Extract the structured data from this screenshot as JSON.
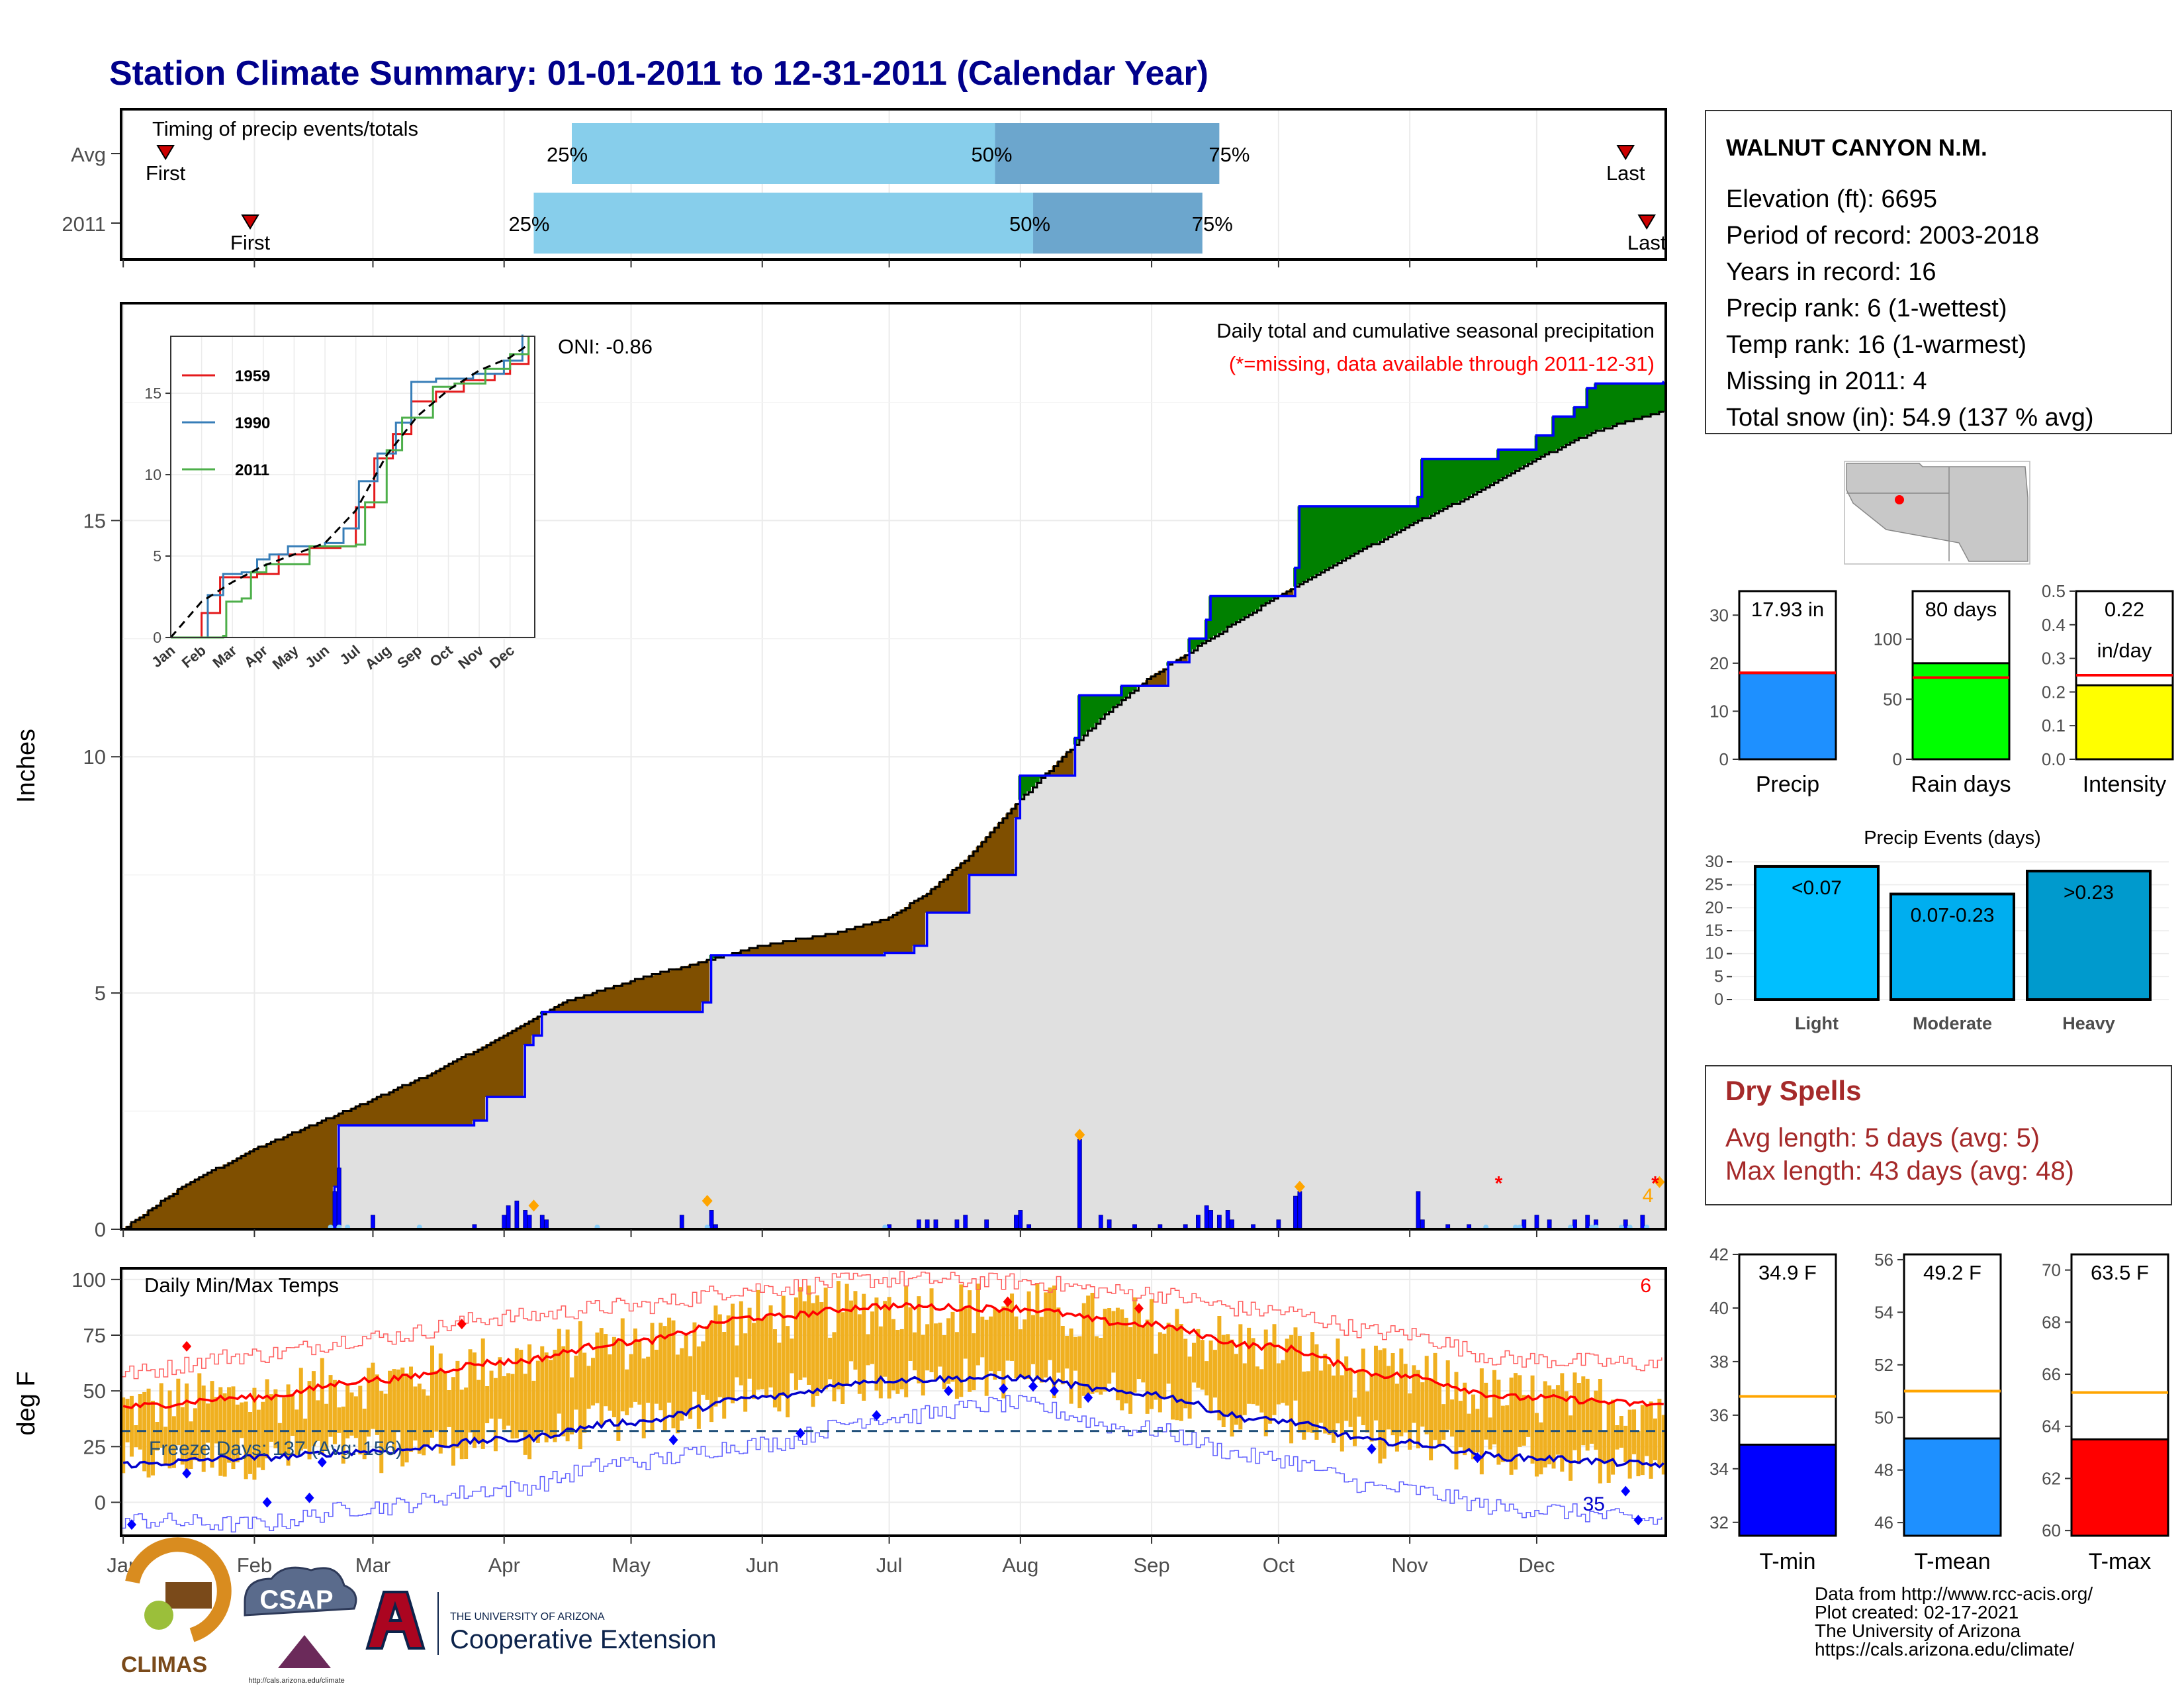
{
  "title": "Station Climate Summary: 01-01-2011 to 12-31-2011 (Calendar Year)",
  "colors": {
    "title": "#00008B",
    "q_light": "#87CEEB",
    "q_dark": "#6CA6CD",
    "marker": "#CC0000",
    "deficit": "#7F4F00",
    "surplus": "#008000",
    "cum2011": "#0000FF",
    "cumAvg": "#000000",
    "normal_fill": "#E0E0E0",
    "temp_bar": "#F0B020",
    "tmax_avg": "#FF0000",
    "tmin_avg": "#0000CC",
    "freeze_line": "#1F4E79",
    "dry_text": "#A52A2A"
  },
  "timing": {
    "label": "Timing of precip events/totals",
    "rows": [
      {
        "label": "Avg",
        "first": "01-11",
        "q25": "04-17",
        "q50": "07-26",
        "q75": "09-17",
        "last": "12-22",
        "q25_lbl": "25%",
        "q50_lbl": "50%",
        "q75_lbl": "75%",
        "first_lbl": "First",
        "last_lbl": "Last"
      },
      {
        "label": "2011",
        "first": "01-31",
        "q25": "04-08",
        "q50": "08-04",
        "q75": "09-13",
        "last": "12-27",
        "q25_lbl": "25%",
        "q50_lbl": "50%",
        "q75_lbl": "75%",
        "first_lbl": "First",
        "last_lbl": "Last"
      }
    ]
  },
  "main": {
    "ylabel": "Inches",
    "yticks": [
      0,
      5,
      10,
      15
    ],
    "ylim": [
      0,
      19.6
    ],
    "annot_title": "Daily total and cumulative seasonal precipitation",
    "annot_missing": "(*=missing, data available through 2011-12-31)",
    "oni": "ONI: -0.86",
    "missing_count": "4",
    "avg_cumulative": [
      {
        "m": "01-01",
        "v": 0.0
      },
      {
        "m": "01-15",
        "v": 0.9
      },
      {
        "m": "02-01",
        "v": 1.7
      },
      {
        "m": "02-20",
        "v": 2.4
      },
      {
        "m": "03-15",
        "v": 3.3
      },
      {
        "m": "04-01",
        "v": 4.1
      },
      {
        "m": "04-15",
        "v": 4.8
      },
      {
        "m": "05-01",
        "v": 5.25
      },
      {
        "m": "05-15",
        "v": 5.6
      },
      {
        "m": "06-01",
        "v": 6.0
      },
      {
        "m": "06-20",
        "v": 6.3
      },
      {
        "m": "07-01",
        "v": 6.6
      },
      {
        "m": "07-10",
        "v": 7.1
      },
      {
        "m": "07-20",
        "v": 7.9
      },
      {
        "m": "07-31",
        "v": 9.0
      },
      {
        "m": "08-10",
        "v": 9.9
      },
      {
        "m": "08-20",
        "v": 10.8
      },
      {
        "m": "09-01",
        "v": 11.7
      },
      {
        "m": "09-15",
        "v": 12.5
      },
      {
        "m": "10-01",
        "v": 13.4
      },
      {
        "m": "10-15",
        "v": 14.1
      },
      {
        "m": "11-01",
        "v": 14.9
      },
      {
        "m": "11-15",
        "v": 15.5
      },
      {
        "m": "12-01",
        "v": 16.3
      },
      {
        "m": "12-15",
        "v": 16.9
      },
      {
        "m": "12-31",
        "v": 17.3
      }
    ],
    "cum_2011": [
      {
        "m": "01-01",
        "v": 0.0
      },
      {
        "m": "02-19",
        "v": 0.0
      },
      {
        "m": "02-20",
        "v": 0.9
      },
      {
        "m": "02-21",
        "v": 2.2
      },
      {
        "m": "03-25",
        "v": 2.3
      },
      {
        "m": "03-28",
        "v": 2.8
      },
      {
        "m": "04-06",
        "v": 3.9
      },
      {
        "m": "04-08",
        "v": 4.1
      },
      {
        "m": "04-10",
        "v": 4.6
      },
      {
        "m": "05-18",
        "v": 4.8
      },
      {
        "m": "05-20",
        "v": 5.8
      },
      {
        "m": "06-30",
        "v": 5.85
      },
      {
        "m": "07-07",
        "v": 6.0
      },
      {
        "m": "07-10",
        "v": 6.7
      },
      {
        "m": "07-20",
        "v": 7.5
      },
      {
        "m": "07-31",
        "v": 8.7
      },
      {
        "m": "08-01",
        "v": 9.6
      },
      {
        "m": "08-14",
        "v": 10.4
      },
      {
        "m": "08-15",
        "v": 11.3
      },
      {
        "m": "08-25",
        "v": 11.5
      },
      {
        "m": "09-05",
        "v": 12.0
      },
      {
        "m": "09-10",
        "v": 12.5
      },
      {
        "m": "09-14",
        "v": 12.9
      },
      {
        "m": "09-15",
        "v": 13.4
      },
      {
        "m": "10-05",
        "v": 14.0
      },
      {
        "m": "10-06",
        "v": 15.3
      },
      {
        "m": "11-03",
        "v": 15.5
      },
      {
        "m": "11-04",
        "v": 16.3
      },
      {
        "m": "11-22",
        "v": 16.5
      },
      {
        "m": "12-01",
        "v": 16.8
      },
      {
        "m": "12-05",
        "v": 17.2
      },
      {
        "m": "12-10",
        "v": 17.4
      },
      {
        "m": "12-13",
        "v": 17.8
      },
      {
        "m": "12-15",
        "v": 17.9
      },
      {
        "m": "12-31",
        "v": 17.93
      }
    ],
    "daily_bars": [
      {
        "m": "02-20",
        "v": 0.8
      },
      {
        "m": "02-21",
        "v": 1.3
      },
      {
        "m": "03-01",
        "v": 0.3
      },
      {
        "m": "03-25",
        "v": 0.1
      },
      {
        "m": "04-01",
        "v": 0.3
      },
      {
        "m": "04-02",
        "v": 0.5
      },
      {
        "m": "04-04",
        "v": 0.6
      },
      {
        "m": "04-06",
        "v": 0.4
      },
      {
        "m": "04-07",
        "v": 0.3
      },
      {
        "m": "04-10",
        "v": 0.3
      },
      {
        "m": "04-11",
        "v": 0.2
      },
      {
        "m": "05-13",
        "v": 0.3
      },
      {
        "m": "05-20",
        "v": 0.4
      },
      {
        "m": "05-21",
        "v": 0.1
      },
      {
        "m": "07-01",
        "v": 0.1
      },
      {
        "m": "07-08",
        "v": 0.2
      },
      {
        "m": "07-10",
        "v": 0.2
      },
      {
        "m": "07-12",
        "v": 0.2
      },
      {
        "m": "07-17",
        "v": 0.2
      },
      {
        "m": "07-19",
        "v": 0.3
      },
      {
        "m": "07-24",
        "v": 0.2
      },
      {
        "m": "07-31",
        "v": 0.3
      },
      {
        "m": "08-01",
        "v": 0.4
      },
      {
        "m": "08-03",
        "v": 0.1
      },
      {
        "m": "08-15",
        "v": 1.9
      },
      {
        "m": "08-20",
        "v": 0.3
      },
      {
        "m": "08-22",
        "v": 0.2
      },
      {
        "m": "08-28",
        "v": 0.1
      },
      {
        "m": "09-03",
        "v": 0.1
      },
      {
        "m": "09-09",
        "v": 0.1
      },
      {
        "m": "09-12",
        "v": 0.3
      },
      {
        "m": "09-14",
        "v": 0.5
      },
      {
        "m": "09-15",
        "v": 0.4
      },
      {
        "m": "09-17",
        "v": 0.3
      },
      {
        "m": "09-19",
        "v": 0.4
      },
      {
        "m": "09-20",
        "v": 0.2
      },
      {
        "m": "09-25",
        "v": 0.1
      },
      {
        "m": "10-01",
        "v": 0.2
      },
      {
        "m": "10-05",
        "v": 0.7
      },
      {
        "m": "10-06",
        "v": 0.8
      },
      {
        "m": "11-03",
        "v": 0.8
      },
      {
        "m": "11-04",
        "v": 0.2
      },
      {
        "m": "11-10",
        "v": 0.1
      },
      {
        "m": "11-15",
        "v": 0.1
      },
      {
        "m": "11-28",
        "v": 0.2
      },
      {
        "m": "12-01",
        "v": 0.3
      },
      {
        "m": "12-04",
        "v": 0.2
      },
      {
        "m": "12-10",
        "v": 0.2
      },
      {
        "m": "12-13",
        "v": 0.3
      },
      {
        "m": "12-15",
        "v": 0.2
      },
      {
        "m": "12-22",
        "v": 0.2
      },
      {
        "m": "12-26",
        "v": 0.3
      }
    ],
    "record_diamonds": [
      {
        "m": "04-08",
        "v": 0.5
      },
      {
        "m": "05-19",
        "v": 0.6
      },
      {
        "m": "08-15",
        "v": 2.0
      },
      {
        "m": "10-06",
        "v": 0.9
      },
      {
        "m": "12-30",
        "v": 1.0
      }
    ],
    "missing_marks": [
      {
        "m": "11-22",
        "v": 1.0
      },
      {
        "m": "12-29",
        "v": 1.0
      }
    ]
  },
  "inset": {
    "yticks": [
      0,
      5,
      10,
      15
    ],
    "ylim": [
      0,
      18.5
    ],
    "xticks": [
      "Jan",
      "Feb",
      "Mar",
      "Apr",
      "May",
      "Jun",
      "Jul",
      "Aug",
      "Sep",
      "Oct",
      "Nov",
      "Dec"
    ],
    "avg_line": [
      [
        0,
        0
      ],
      [
        1,
        2.2
      ],
      [
        2,
        3.4
      ],
      [
        3,
        4.4
      ],
      [
        4,
        5.1
      ],
      [
        5,
        5.8
      ],
      [
        6,
        7.8
      ],
      [
        7,
        11.2
      ],
      [
        8,
        13.6
      ],
      [
        9,
        15.2
      ],
      [
        10,
        16.4
      ],
      [
        11,
        17.2
      ],
      [
        11.6,
        18.0
      ]
    ],
    "series": [
      {
        "name": "1959",
        "color": "#E41A1C",
        "values": [
          [
            0,
            0
          ],
          [
            1.0,
            1.5
          ],
          [
            1.6,
            3.7
          ],
          [
            2.2,
            3.7
          ],
          [
            2.8,
            3.9
          ],
          [
            3.5,
            5.1
          ],
          [
            4.5,
            5.5
          ],
          [
            5.5,
            5.6
          ],
          [
            6.0,
            8.0
          ],
          [
            6.6,
            11.0
          ],
          [
            7.2,
            12.5
          ],
          [
            7.8,
            14.5
          ],
          [
            8.6,
            15.1
          ],
          [
            9.5,
            15.8
          ],
          [
            10.5,
            16.2
          ],
          [
            11.0,
            16.8
          ],
          [
            11.6,
            18.5
          ]
        ]
      },
      {
        "name": "1990",
        "color": "#377EB8",
        "values": [
          [
            0,
            0
          ],
          [
            1.2,
            2.6
          ],
          [
            1.7,
            3.9
          ],
          [
            2.3,
            4.0
          ],
          [
            2.8,
            4.8
          ],
          [
            3.2,
            5.1
          ],
          [
            3.8,
            5.6
          ],
          [
            5.0,
            5.8
          ],
          [
            5.6,
            6.7
          ],
          [
            6.1,
            9.6
          ],
          [
            6.7,
            11.3
          ],
          [
            7.3,
            13.2
          ],
          [
            7.8,
            15.7
          ],
          [
            8.6,
            15.9
          ],
          [
            9.8,
            16.2
          ],
          [
            10.8,
            17.0
          ],
          [
            11.4,
            18.6
          ]
        ]
      },
      {
        "name": "2011",
        "color": "#4DAF4A",
        "values": [
          [
            0,
            0
          ],
          [
            1.7,
            0.1
          ],
          [
            1.8,
            2.2
          ],
          [
            2.3,
            2.4
          ],
          [
            2.6,
            4.0
          ],
          [
            3.1,
            4.5
          ],
          [
            4.5,
            5.6
          ],
          [
            6.0,
            5.7
          ],
          [
            6.3,
            8.3
          ],
          [
            7.0,
            11.5
          ],
          [
            7.5,
            13.5
          ],
          [
            8.5,
            15.4
          ],
          [
            9.2,
            15.6
          ],
          [
            10.2,
            16.5
          ],
          [
            11.0,
            17.4
          ],
          [
            11.6,
            18.5
          ]
        ]
      }
    ]
  },
  "temps": {
    "ylabel": "deg F",
    "label": "Daily Min/Max Temps",
    "yticks": [
      0,
      25,
      50,
      75,
      100
    ],
    "ylim": [
      -15,
      105
    ],
    "freeze_text": "Freeze Days: 137 (Avg: 156)",
    "freeze_line": 32,
    "count_max": "6",
    "count_min": "35",
    "tmax_avg": [
      [
        0,
        43
      ],
      [
        30,
        47
      ],
      [
        60,
        55
      ],
      [
        90,
        63
      ],
      [
        120,
        72
      ],
      [
        150,
        83
      ],
      [
        180,
        88
      ],
      [
        210,
        87
      ],
      [
        240,
        80
      ],
      [
        270,
        70
      ],
      [
        300,
        57
      ],
      [
        330,
        47
      ],
      [
        364,
        44
      ]
    ],
    "tmin_avg": [
      [
        0,
        17
      ],
      [
        30,
        20
      ],
      [
        60,
        23
      ],
      [
        90,
        28
      ],
      [
        120,
        36
      ],
      [
        150,
        47
      ],
      [
        180,
        55
      ],
      [
        210,
        56
      ],
      [
        240,
        49
      ],
      [
        270,
        37
      ],
      [
        300,
        27
      ],
      [
        330,
        20
      ],
      [
        364,
        17
      ]
    ],
    "tmax_rec": [
      [
        0,
        58
      ],
      [
        30,
        66
      ],
      [
        60,
        74
      ],
      [
        90,
        83
      ],
      [
        120,
        88
      ],
      [
        150,
        96
      ],
      [
        180,
        100
      ],
      [
        210,
        99
      ],
      [
        240,
        94
      ],
      [
        270,
        86
      ],
      [
        300,
        76
      ],
      [
        330,
        64
      ],
      [
        364,
        62
      ]
    ],
    "tmin_rec": [
      [
        0,
        -8
      ],
      [
        30,
        -10
      ],
      [
        60,
        -2
      ],
      [
        90,
        6
      ],
      [
        120,
        18
      ],
      [
        150,
        26
      ],
      [
        180,
        38
      ],
      [
        210,
        44
      ],
      [
        240,
        33
      ],
      [
        270,
        20
      ],
      [
        300,
        6
      ],
      [
        330,
        -3
      ],
      [
        364,
        -8
      ]
    ]
  },
  "xaxis": {
    "months": [
      "Jan",
      "Feb",
      "Mar",
      "Apr",
      "May",
      "Jun",
      "Jul",
      "Aug",
      "Sep",
      "Oct",
      "Nov",
      "Dec"
    ],
    "month_start_days": [
      0,
      31,
      59,
      90,
      120,
      151,
      181,
      212,
      243,
      273,
      304,
      334
    ],
    "ndays": 365
  },
  "station": {
    "name": "WALNUT CANYON N.M.",
    "lines": [
      "Elevation (ft): 6695",
      "Period of record: 2003-2018",
      "Years in record: 16",
      "Precip rank: 6 (1-wettest)",
      "Temp rank: 16 (1-warmest)",
      "Missing in 2011: 4",
      "Total snow (in): 54.9 (137 % avg)"
    ]
  },
  "summary_bars": [
    {
      "label": "Precip",
      "value": 17.93,
      "value_lbl": "17.93 in",
      "avg": 18.0,
      "ymax": 35,
      "yticks": [
        0,
        10,
        20,
        30
      ],
      "color": "#1E90FF"
    },
    {
      "label": "Rain days",
      "value": 80,
      "value_lbl": "80 days",
      "avg": 68,
      "ymax": 140,
      "yticks": [
        0,
        50,
        100
      ],
      "color": "#00FF00"
    },
    {
      "label": "Intensity",
      "value": 0.22,
      "value_lbl": "0.22",
      "value_lbl2": "in/day",
      "avg": 0.25,
      "ymax": 0.5,
      "yticks": [
        0.0,
        0.1,
        0.2,
        0.3,
        0.4,
        0.5
      ],
      "color": "#FFFF00"
    }
  ],
  "events": {
    "title": "Precip Events (days)",
    "yticks": [
      0,
      5,
      10,
      15,
      20,
      25,
      30
    ],
    "ymax": 30,
    "bars": [
      {
        "cat": "Light",
        "value": 29,
        "lbl": "<0.07",
        "color": "#00BFFF"
      },
      {
        "cat": "Moderate",
        "value": 23,
        "lbl": "0.07-0.23",
        "color": "#00AEEF"
      },
      {
        "cat": "Heavy",
        "value": 28,
        "lbl": ">0.23",
        "color": "#009ACD"
      }
    ]
  },
  "dry": {
    "title": "Dry Spells",
    "avg": "Avg length: 5 days (avg: 5)",
    "max": "Max length: 43 days (avg: 48)"
  },
  "temp_bars": [
    {
      "label": "T-min",
      "value": 34.9,
      "value_lbl": "34.9 F",
      "avg": 36.7,
      "ymin": 31.5,
      "ymax": 42,
      "yticks": [
        32,
        34,
        36,
        38,
        40,
        42
      ],
      "color": "#0000FF"
    },
    {
      "label": "T-mean",
      "value": 49.2,
      "value_lbl": "49.2 F",
      "avg": 51.0,
      "ymin": 45.5,
      "ymax": 56.2,
      "yticks": [
        46,
        48,
        50,
        52,
        54,
        56
      ],
      "color": "#1E90FF"
    },
    {
      "label": "T-max",
      "value": 63.5,
      "value_lbl": "63.5 F",
      "avg": 65.3,
      "ymin": 59.8,
      "ymax": 70.6,
      "yticks": [
        60,
        62,
        64,
        66,
        68,
        70
      ],
      "color": "#FF0000"
    }
  ],
  "footer": {
    "lines": [
      "Data from http://www.rcc-acis.org/",
      "Plot created: 02-17-2021",
      "The University of Arizona",
      "https://cals.arizona.edu/climate/"
    ],
    "logo_climas": "CLIMAS",
    "logo_csap": "CSAP",
    "logo_csap_url": "http://cals.arizona.edu/climate",
    "ua_small": "THE UNIVERSITY OF ARIZONA",
    "ua_big": "Cooperative Extension"
  }
}
